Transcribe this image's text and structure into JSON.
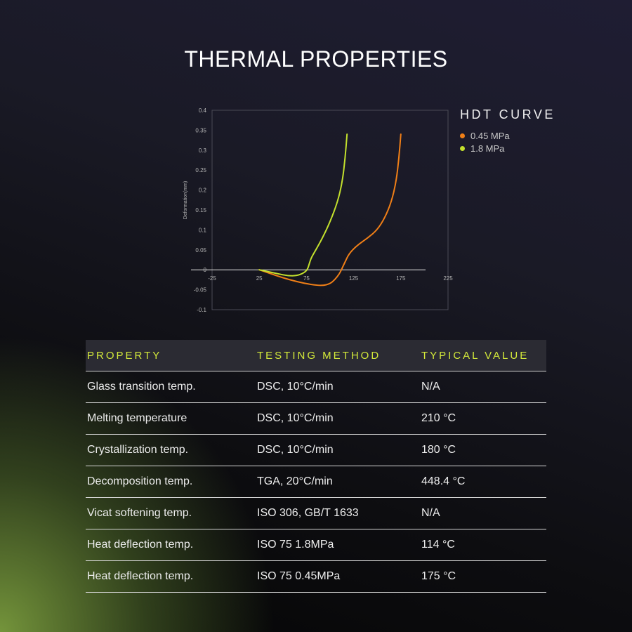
{
  "title": "THERMAL PROPERTIES",
  "colors": {
    "accent": "#d4ea3a",
    "series_045": "#f07f17",
    "series_18": "#c3e02d"
  },
  "chart_data": {
    "type": "line",
    "title": "HDT CURVE",
    "xlabel": "",
    "ylabel": "Deformation(mm)",
    "xlim": [
      -25,
      225
    ],
    "ylim": [
      -0.1,
      0.4
    ],
    "x_ticks": [
      "-25",
      "25",
      "75",
      "125",
      "175",
      "225"
    ],
    "y_ticks": [
      "0.4",
      "0.35",
      "0.3",
      "0.25",
      "0.2",
      "0.15",
      "0.1",
      "0.05",
      "0",
      "-0.05",
      "-0.1"
    ],
    "legend_position": "right",
    "series": [
      {
        "name": "0.45 MPa",
        "color": "#f07f17",
        "x": [
          25,
          35,
          50,
          65,
          80,
          92,
          100,
          105,
          110,
          113,
          116,
          120,
          128,
          140,
          150,
          158,
          165,
          170,
          173,
          175
        ],
        "y": [
          0.0,
          -0.008,
          -0.02,
          -0.03,
          -0.037,
          -0.04,
          -0.035,
          -0.025,
          -0.01,
          0.005,
          0.02,
          0.04,
          0.06,
          0.08,
          0.1,
          0.13,
          0.17,
          0.22,
          0.28,
          0.34
        ]
      },
      {
        "name": "1.8 MPa",
        "color": "#c3e02d",
        "x": [
          25,
          35,
          45,
          55,
          65,
          72,
          76,
          78,
          80,
          85,
          92,
          100,
          108,
          113,
          116,
          118
        ],
        "y": [
          0.0,
          -0.005,
          -0.01,
          -0.015,
          -0.015,
          -0.008,
          0.0,
          0.015,
          0.03,
          0.05,
          0.08,
          0.12,
          0.17,
          0.22,
          0.28,
          0.34
        ]
      }
    ]
  },
  "table": {
    "headers": [
      "PROPERTY",
      "TESTING METHOD",
      "TYPICAL VALUE"
    ],
    "rows": [
      [
        "Glass transition temp.",
        "DSC, 10°C/min",
        "N/A"
      ],
      [
        "Melting temperature",
        "DSC, 10°C/min",
        "210 °C"
      ],
      [
        "Crystallization temp.",
        "DSC, 10°C/min",
        "180 °C"
      ],
      [
        "Decomposition temp.",
        "TGA, 20°C/min",
        "448.4 °C"
      ],
      [
        "Vicat softening temp.",
        "ISO 306, GB/T 1633",
        "N/A"
      ],
      [
        "Heat deflection temp.",
        "ISO 75 1.8MPa",
        "114 °C"
      ],
      [
        "Heat deflection temp.",
        "ISO 75 0.45MPa",
        "175 °C"
      ]
    ]
  }
}
